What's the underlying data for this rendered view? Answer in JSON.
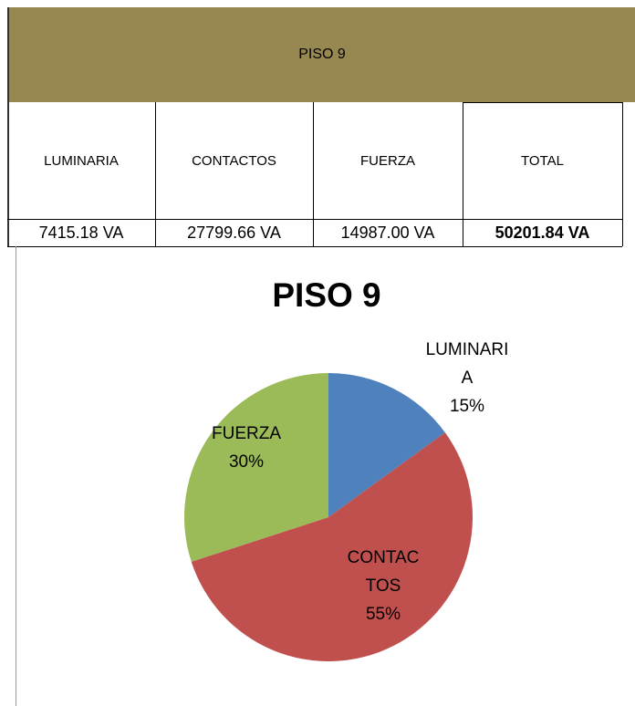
{
  "table": {
    "title": "PISO 9",
    "columns": [
      "LUMINARIA",
      "CONTACTOS",
      "FUERZA",
      "TOTAL"
    ],
    "rows": [
      [
        "7415.18 VA",
        "27799.66 VA",
        "14987.00 VA",
        "50201.84 VA"
      ]
    ]
  },
  "chart_data": {
    "type": "pie",
    "title": "PISO 9",
    "categories": [
      "LUMINARIA",
      "CONTACTOS",
      "FUERZA"
    ],
    "values": [
      15,
      55,
      30
    ],
    "value_labels": [
      "15%",
      "55%",
      "30%"
    ],
    "colors": [
      "#4f81bd",
      "#c0504d",
      "#9bbb59"
    ]
  }
}
